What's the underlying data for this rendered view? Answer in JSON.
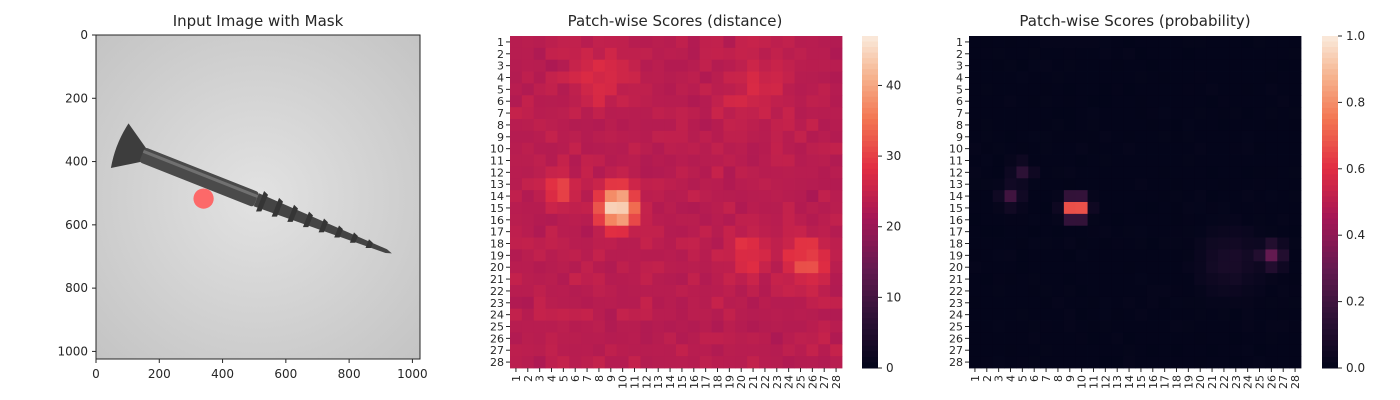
{
  "chart_data": [
    {
      "type": "image",
      "title": "Input Image with Mask",
      "xticks": [
        0,
        200,
        400,
        600,
        800,
        1000
      ],
      "yticks": [
        0,
        200,
        400,
        600,
        800,
        1000
      ],
      "xlim": [
        0,
        1024
      ],
      "ylim": [
        1024,
        0
      ],
      "background_color": "#d0d0d0",
      "object": "screw",
      "object_axis": {
        "start": [
          75,
          350
        ],
        "end": [
          935,
          690
        ]
      },
      "mask_marker": {
        "x": 340,
        "y": 517,
        "r": 32,
        "color": "#ff5c5c"
      }
    },
    {
      "type": "heatmap",
      "title": "Patch-wise Scores (distance)",
      "rows": 28,
      "cols": 28,
      "xticklabels": [
        "1",
        "2",
        "3",
        "4",
        "5",
        "6",
        "7",
        "8",
        "9",
        "10",
        "11",
        "12",
        "13",
        "14",
        "15",
        "16",
        "17",
        "18",
        "19",
        "20",
        "21",
        "22",
        "23",
        "24",
        "25",
        "26",
        "27",
        "28"
      ],
      "yticklabels": [
        "1",
        "2",
        "3",
        "4",
        "5",
        "6",
        "7",
        "8",
        "9",
        "10",
        "11",
        "12",
        "13",
        "14",
        "15",
        "16",
        "17",
        "18",
        "19",
        "20",
        "21",
        "22",
        "23",
        "24",
        "25",
        "26",
        "27",
        "28"
      ],
      "colorbar": {
        "min": 0,
        "max": 47,
        "ticks": [
          0,
          10,
          20,
          30,
          40
        ]
      },
      "base_value": 22,
      "hotspots": [
        {
          "row": 15,
          "col": 9.5,
          "peak": 47,
          "spread": 1.2
        },
        {
          "row": 13.5,
          "col": 4.5,
          "peak": 30,
          "spread": 1.2
        },
        {
          "row": 19,
          "col": 20.5,
          "peak": 29,
          "spread": 1.5
        },
        {
          "row": 19.5,
          "col": 25.5,
          "peak": 31,
          "spread": 1.6
        },
        {
          "row": 4,
          "col": 8,
          "peak": 27,
          "spread": 2.5
        },
        {
          "row": 5,
          "col": 21,
          "peak": 26,
          "spread": 3.0
        }
      ]
    },
    {
      "type": "heatmap",
      "title": "Patch-wise Scores (probability)",
      "rows": 28,
      "cols": 28,
      "xticklabels": [
        "1",
        "2",
        "3",
        "4",
        "5",
        "6",
        "7",
        "8",
        "9",
        "10",
        "11",
        "12",
        "13",
        "14",
        "15",
        "16",
        "17",
        "18",
        "19",
        "20",
        "21",
        "22",
        "23",
        "24",
        "25",
        "26",
        "27",
        "28"
      ],
      "yticklabels": [
        "1",
        "2",
        "3",
        "4",
        "5",
        "6",
        "7",
        "8",
        "9",
        "10",
        "11",
        "12",
        "13",
        "14",
        "15",
        "16",
        "17",
        "18",
        "19",
        "20",
        "21",
        "22",
        "23",
        "24",
        "25",
        "26",
        "27",
        "28"
      ],
      "colorbar": {
        "min": 0,
        "max": 1,
        "ticks": [
          0.0,
          0.2,
          0.4,
          0.6,
          0.8,
          1.0
        ]
      },
      "base_value": 0,
      "hotspots": [
        {
          "row": 15,
          "col": 9.5,
          "peak": 0.95,
          "spread": 0.6
        },
        {
          "row": 14,
          "col": 4,
          "peak": 0.2,
          "spread": 0.6
        },
        {
          "row": 12,
          "col": 5,
          "peak": 0.15,
          "spread": 0.6
        },
        {
          "row": 19,
          "col": 26,
          "peak": 0.3,
          "spread": 0.7
        },
        {
          "row": 19.5,
          "col": 22.5,
          "peak": 0.08,
          "spread": 1.8
        }
      ]
    }
  ]
}
